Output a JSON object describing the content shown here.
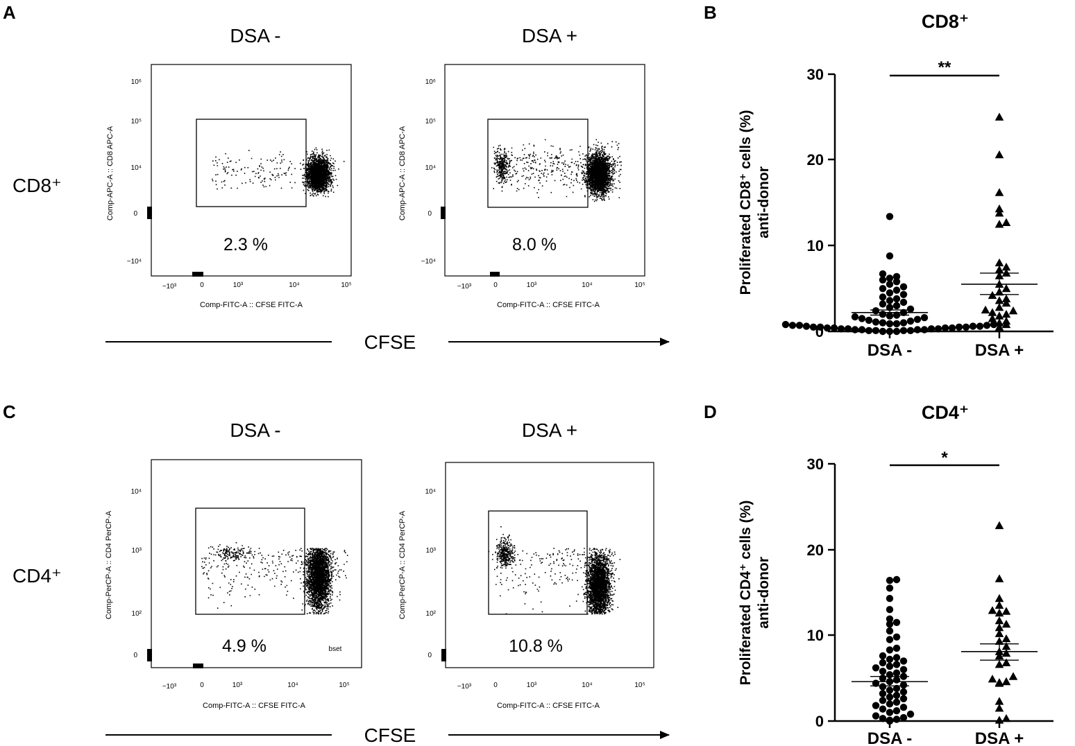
{
  "panel_labels": {
    "a": "A",
    "b": "B",
    "c": "C",
    "d": "D"
  },
  "flow_rows": [
    {
      "row_label": "CD8⁺",
      "arrow_label": "CFSE",
      "plots": [
        {
          "condition": "DSA -",
          "percent": "2.3 %",
          "x_axis_label": "Comp-FITC-A :: CFSE FITC-A",
          "y_axis_label": "Comp-APC-A :: CD8 APC-A",
          "y_ticks": [
            "10⁶",
            "10⁵",
            "10⁴",
            "0",
            "−10⁴"
          ],
          "x_ticks": [
            "−10³",
            "0",
            "10³",
            "10⁴",
            "10⁵"
          ],
          "extra_text": ""
        },
        {
          "condition": "DSA +",
          "percent": "8.0 %",
          "x_axis_label": "Comp-FITC-A :: CFSE FITC-A",
          "y_axis_label": "Comp-APC-A :: CD8 APC-A",
          "y_ticks": [
            "10⁶",
            "10⁵",
            "10⁴",
            "0",
            "−10⁴"
          ],
          "x_ticks": [
            "−10³",
            "0",
            "10³",
            "10⁴",
            "10⁵"
          ],
          "extra_text": ""
        }
      ]
    },
    {
      "row_label": "CD4⁺",
      "arrow_label": "CFSE",
      "plots": [
        {
          "condition": "DSA -",
          "percent": "4.9 %",
          "x_axis_label": "Comp-FITC-A :: CFSE FITC-A",
          "y_axis_label": "Comp-PerCP-A :: CD4 PerCP-A",
          "y_ticks": [
            "10⁴",
            "10³",
            "10²",
            "0"
          ],
          "x_ticks": [
            "−10³",
            "0",
            "10³",
            "10⁴",
            "10⁵"
          ],
          "extra_text": "bset"
        },
        {
          "condition": "DSA +",
          "percent": "10.8 %",
          "x_axis_label": "Comp-FITC-A :: CFSE FITC-A",
          "y_axis_label": "Comp-PerCP-A :: CD4 PerCP-A",
          "y_ticks": [
            "10⁴",
            "10³",
            "10²",
            "0"
          ],
          "x_ticks": [
            "−10³",
            "0",
            "10³",
            "10⁴",
            "10⁵"
          ],
          "extra_text": ""
        }
      ]
    }
  ],
  "chart_data": [
    {
      "type": "scatter",
      "title": "CD8⁺",
      "ylabel_line1": "Proliferated CD8⁺ cells (%)",
      "ylabel_line2": "anti-donor",
      "ylim": [
        0,
        30
      ],
      "yticks": [
        0,
        10,
        20,
        30
      ],
      "categories": [
        "DSA -",
        "DSA +"
      ],
      "significance": "**",
      "series": [
        {
          "name": "DSA -",
          "marker": "circle",
          "mean": 2.2,
          "sem_low": 1.9,
          "sem_high": 2.5,
          "values": [
            13.4,
            8.8,
            6.7,
            6.4,
            6.2,
            6.0,
            5.8,
            5.5,
            5.2,
            5.0,
            4.8,
            4.5,
            4.3,
            4.0,
            3.8,
            3.6,
            3.4,
            3.2,
            3.0,
            2.8,
            2.6,
            2.4,
            2.2,
            2.0,
            1.9,
            1.8,
            1.7,
            1.6,
            1.5,
            1.4,
            1.3,
            1.2,
            1.1,
            1.0,
            1.0,
            0.9,
            0.9,
            0.8,
            0.8,
            0.7,
            0.7,
            0.7,
            0.6,
            0.6,
            0.6,
            0.5,
            0.5,
            0.5,
            0.5,
            0.4,
            0.4,
            0.4,
            0.4,
            0.3,
            0.3,
            0.3,
            0.3,
            0.2,
            0.2,
            0.2,
            0.2,
            0.1,
            0.1,
            0.1,
            0.1,
            0.0,
            0.0,
            0.0
          ]
        },
        {
          "name": "DSA +",
          "marker": "triangle",
          "mean": 5.5,
          "sem_low": 4.3,
          "sem_high": 6.8,
          "values": [
            25.0,
            20.6,
            16.2,
            14.3,
            13.8,
            12.7,
            12.5,
            8.0,
            7.5,
            7.2,
            6.8,
            6.5,
            5.5,
            5.0,
            4.6,
            4.2,
            3.8,
            3.6,
            3.3,
            2.8,
            2.5,
            2.4,
            2.2,
            2.0,
            1.8,
            1.5,
            1.2,
            1.0,
            0.8,
            0.5
          ]
        }
      ]
    },
    {
      "type": "scatter",
      "title": "CD4⁺",
      "ylabel_line1": "Proliferated CD4⁺ cells (%)",
      "ylabel_line2": "anti-donor",
      "ylim": [
        0,
        30
      ],
      "yticks": [
        0,
        10,
        20,
        30
      ],
      "categories": [
        "DSA -",
        "DSA +"
      ],
      "significance": "*",
      "series": [
        {
          "name": "DSA -",
          "marker": "circle",
          "mean": 4.6,
          "sem_low": 4.1,
          "sem_high": 5.2,
          "values": [
            16.5,
            16.4,
            15.5,
            14.3,
            13.0,
            11.9,
            11.5,
            11.3,
            10.5,
            9.8,
            9.5,
            8.5,
            8.3,
            7.6,
            7.4,
            7.2,
            7.0,
            6.8,
            6.6,
            6.4,
            6.2,
            6.0,
            5.8,
            5.6,
            5.4,
            5.2,
            5.0,
            4.8,
            4.6,
            4.4,
            4.2,
            4.0,
            3.8,
            3.6,
            3.4,
            3.2,
            3.0,
            2.8,
            2.6,
            2.4,
            2.2,
            2.0,
            1.8,
            1.6,
            1.4,
            1.2,
            1.0,
            0.8,
            0.6,
            0.4,
            0.3,
            0.2,
            0.1,
            0.0
          ]
        },
        {
          "name": "DSA +",
          "marker": "triangle",
          "mean": 8.1,
          "sem_low": 7.1,
          "sem_high": 9.0,
          "values": [
            22.8,
            16.6,
            14.3,
            13.5,
            12.9,
            12.8,
            12.6,
            11.7,
            11.3,
            10.9,
            10.2,
            9.6,
            9.3,
            8.7,
            8.1,
            7.9,
            7.6,
            6.8,
            6.6,
            5.2,
            4.9,
            4.6,
            4.5,
            4.4,
            2.3,
            1.5,
            0.3,
            0.1
          ]
        }
      ]
    }
  ]
}
